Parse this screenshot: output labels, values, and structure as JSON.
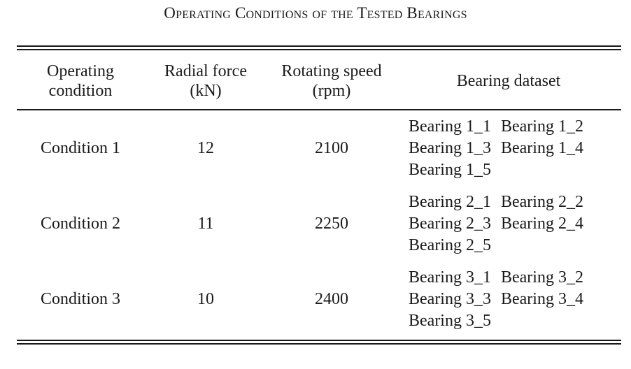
{
  "caption": "Operating Conditions of the Tested Bearings",
  "table": {
    "headers": [
      [
        "Operating",
        "condition"
      ],
      [
        "Radial force",
        "(kN)"
      ],
      [
        "Rotating speed",
        "(rpm)"
      ],
      [
        "Bearing dataset"
      ]
    ],
    "rows": [
      {
        "condition": "Condition 1",
        "radial_force": "12",
        "rotating_speed": "2100",
        "datasets": [
          [
            "Bearing 1_1",
            "Bearing 1_2"
          ],
          [
            "Bearing 1_3",
            "Bearing 1_4"
          ],
          [
            "Bearing 1_5"
          ]
        ]
      },
      {
        "condition": "Condition 2",
        "radial_force": "11",
        "rotating_speed": "2250",
        "datasets": [
          [
            "Bearing 2_1",
            "Bearing 2_2"
          ],
          [
            "Bearing 2_3",
            "Bearing 2_4"
          ],
          [
            "Bearing 2_5"
          ]
        ]
      },
      {
        "condition": "Condition 3",
        "radial_force": "10",
        "rotating_speed": "2400",
        "datasets": [
          [
            "Bearing 3_1",
            "Bearing 3_2"
          ],
          [
            "Bearing 3_3",
            "Bearing 3_4"
          ],
          [
            "Bearing 3_5"
          ]
        ]
      }
    ]
  }
}
